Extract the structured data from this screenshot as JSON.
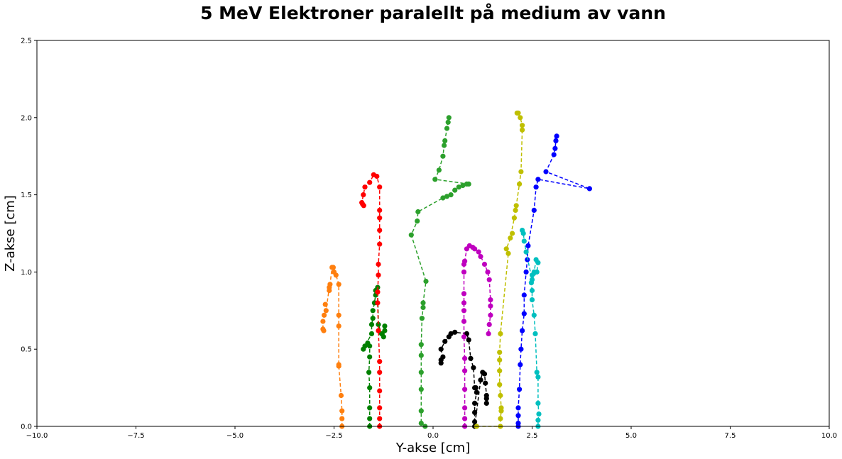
{
  "chart_data": {
    "type": "scatter",
    "title": "5 MeV Elektroner paralellt på medium av vann",
    "xlabel": "Y-akse [cm]",
    "ylabel": "Z-akse [cm]",
    "xlim": [
      -10,
      10
    ],
    "ylim": [
      0,
      2.5
    ],
    "xticks": [
      -10.0,
      -7.5,
      -5.0,
      -2.5,
      0.0,
      2.5,
      5.0,
      7.5,
      10.0
    ],
    "yticks": [
      0.0,
      0.5,
      1.0,
      1.5,
      2.0,
      2.5
    ],
    "xtick_labels": [
      "−10.0",
      "−7.5",
      "−5.0",
      "−2.5",
      "0.0",
      "2.5",
      "5.0",
      "7.5",
      "10.0"
    ],
    "ytick_labels": [
      "0.0",
      "0.5",
      "1.0",
      "1.5",
      "2.0",
      "2.5"
    ],
    "grid": false,
    "legend": "none",
    "line_style": "dashed with circle markers",
    "series": [
      {
        "color": "#ff7f0e",
        "points": [
          [
            -2.3,
            0.0
          ],
          [
            -2.3,
            0.05
          ],
          [
            -2.3,
            0.1
          ],
          [
            -2.32,
            0.2
          ],
          [
            -2.38,
            0.39
          ],
          [
            -2.38,
            0.4
          ],
          [
            -2.38,
            0.65
          ],
          [
            -2.38,
            0.72
          ],
          [
            -2.38,
            0.92
          ],
          [
            -2.45,
            0.98
          ],
          [
            -2.5,
            1.0
          ],
          [
            -2.52,
            1.03
          ],
          [
            -2.55,
            1.03
          ],
          [
            -2.6,
            0.92
          ],
          [
            -2.62,
            0.88
          ],
          [
            -2.62,
            0.9
          ],
          [
            -2.7,
            0.75
          ],
          [
            -2.72,
            0.79
          ],
          [
            -2.75,
            0.72
          ],
          [
            -2.78,
            0.68
          ],
          [
            -2.78,
            0.63
          ],
          [
            -2.76,
            0.62
          ]
        ]
      },
      {
        "color": "#008000",
        "points": [
          [
            -1.6,
            0.0
          ],
          [
            -1.6,
            0.05
          ],
          [
            -1.6,
            0.12
          ],
          [
            -1.6,
            0.25
          ],
          [
            -1.62,
            0.35
          ],
          [
            -1.6,
            0.45
          ],
          [
            -1.6,
            0.52
          ],
          [
            -1.65,
            0.54
          ],
          [
            -1.72,
            0.52
          ],
          [
            -1.76,
            0.5
          ],
          [
            -1.55,
            0.6
          ],
          [
            -1.55,
            0.66
          ],
          [
            -1.52,
            0.7
          ],
          [
            -1.52,
            0.75
          ],
          [
            -1.48,
            0.8
          ],
          [
            -1.45,
            0.85
          ],
          [
            -1.45,
            0.88
          ],
          [
            -1.42,
            0.87
          ],
          [
            -1.4,
            0.9
          ],
          [
            -1.38,
            0.66
          ],
          [
            -1.3,
            0.6
          ],
          [
            -1.25,
            0.58
          ],
          [
            -1.22,
            0.62
          ],
          [
            -1.22,
            0.65
          ]
        ]
      },
      {
        "color": "#ff0000",
        "points": [
          [
            -1.35,
            0.0
          ],
          [
            -1.35,
            0.05
          ],
          [
            -1.35,
            0.12
          ],
          [
            -1.35,
            0.23
          ],
          [
            -1.35,
            0.35
          ],
          [
            -1.35,
            0.42
          ],
          [
            -1.38,
            0.62
          ],
          [
            -1.4,
            0.8
          ],
          [
            -1.4,
            0.87
          ],
          [
            -1.38,
            0.98
          ],
          [
            -1.38,
            1.05
          ],
          [
            -1.35,
            1.18
          ],
          [
            -1.35,
            1.27
          ],
          [
            -1.35,
            1.35
          ],
          [
            -1.35,
            1.4
          ],
          [
            -1.35,
            1.55
          ],
          [
            -1.42,
            1.62
          ],
          [
            -1.5,
            1.63
          ],
          [
            -1.6,
            1.58
          ],
          [
            -1.72,
            1.55
          ],
          [
            -1.76,
            1.5
          ],
          [
            -1.8,
            1.45
          ],
          [
            -1.75,
            1.43
          ],
          [
            -1.78,
            1.44
          ]
        ]
      },
      {
        "color": "#2ca02c",
        "points": [
          [
            -0.2,
            0.0
          ],
          [
            -0.3,
            0.02
          ],
          [
            -0.3,
            0.1
          ],
          [
            -0.3,
            0.24
          ],
          [
            -0.3,
            0.35
          ],
          [
            -0.3,
            0.46
          ],
          [
            -0.3,
            0.53
          ],
          [
            -0.28,
            0.7
          ],
          [
            -0.25,
            0.77
          ],
          [
            -0.25,
            0.8
          ],
          [
            -0.18,
            0.94
          ],
          [
            -0.55,
            1.24
          ],
          [
            -0.4,
            1.33
          ],
          [
            -0.38,
            1.39
          ],
          [
            0.25,
            1.48
          ],
          [
            0.35,
            1.49
          ],
          [
            0.45,
            1.5
          ],
          [
            0.55,
            1.53
          ],
          [
            0.65,
            1.55
          ],
          [
            0.75,
            1.56
          ],
          [
            0.85,
            1.57
          ],
          [
            0.9,
            1.57
          ],
          [
            0.05,
            1.6
          ],
          [
            0.15,
            1.66
          ],
          [
            0.25,
            1.75
          ],
          [
            0.28,
            1.82
          ],
          [
            0.3,
            1.85
          ],
          [
            0.35,
            1.93
          ],
          [
            0.38,
            1.97
          ],
          [
            0.4,
            2.0
          ]
        ]
      },
      {
        "color": "#000000",
        "points": [
          [
            0.2,
            0.41
          ],
          [
            0.2,
            0.43
          ],
          [
            0.25,
            0.45
          ],
          [
            0.2,
            0.5
          ],
          [
            0.3,
            0.55
          ],
          [
            0.4,
            0.58
          ],
          [
            0.45,
            0.6
          ],
          [
            0.55,
            0.61
          ],
          [
            0.85,
            0.6
          ],
          [
            0.9,
            0.56
          ],
          [
            0.95,
            0.44
          ],
          [
            1.02,
            0.38
          ],
          [
            1.05,
            0.25
          ],
          [
            1.08,
            0.25
          ],
          [
            1.1,
            0.22
          ],
          [
            1.05,
            0.15
          ],
          [
            1.05,
            0.09
          ],
          [
            1.05,
            0.03
          ],
          [
            1.05,
            0.0
          ],
          [
            1.2,
            0.3
          ],
          [
            1.25,
            0.35
          ],
          [
            1.3,
            0.34
          ],
          [
            1.32,
            0.28
          ],
          [
            1.35,
            0.2
          ],
          [
            1.35,
            0.18
          ],
          [
            1.35,
            0.15
          ]
        ]
      },
      {
        "color": "#bf00bf",
        "points": [
          [
            0.8,
            0.0
          ],
          [
            0.8,
            0.05
          ],
          [
            0.8,
            0.12
          ],
          [
            0.8,
            0.24
          ],
          [
            0.8,
            0.36
          ],
          [
            0.8,
            0.44
          ],
          [
            0.78,
            0.58
          ],
          [
            0.78,
            0.68
          ],
          [
            0.78,
            0.75
          ],
          [
            0.78,
            0.8
          ],
          [
            0.78,
            0.86
          ],
          [
            0.78,
            1.0
          ],
          [
            0.78,
            1.05
          ],
          [
            0.8,
            1.07
          ],
          [
            0.85,
            1.15
          ],
          [
            0.92,
            1.17
          ],
          [
            1.0,
            1.16
          ],
          [
            1.05,
            1.15
          ],
          [
            1.15,
            1.13
          ],
          [
            1.2,
            1.1
          ],
          [
            1.3,
            1.05
          ],
          [
            1.38,
            1.0
          ],
          [
            1.42,
            0.95
          ],
          [
            1.45,
            0.82
          ],
          [
            1.45,
            0.78
          ],
          [
            1.45,
            0.72
          ],
          [
            1.42,
            0.66
          ],
          [
            1.4,
            0.6
          ]
        ]
      },
      {
        "color": "#bfbf00",
        "points": [
          [
            1.1,
            0.0
          ],
          [
            1.7,
            0.0
          ],
          [
            1.7,
            0.05
          ],
          [
            1.72,
            0.1
          ],
          [
            1.72,
            0.12
          ],
          [
            1.7,
            0.2
          ],
          [
            1.68,
            0.27
          ],
          [
            1.68,
            0.36
          ],
          [
            1.68,
            0.43
          ],
          [
            1.68,
            0.48
          ],
          [
            1.7,
            0.6
          ],
          [
            1.9,
            1.12
          ],
          [
            1.85,
            1.15
          ],
          [
            2.0,
            1.25
          ],
          [
            1.95,
            1.22
          ],
          [
            2.05,
            1.35
          ],
          [
            2.08,
            1.4
          ],
          [
            2.1,
            1.43
          ],
          [
            2.18,
            1.57
          ],
          [
            2.22,
            1.65
          ],
          [
            2.25,
            1.92
          ],
          [
            2.25,
            1.95
          ],
          [
            2.2,
            2.0
          ],
          [
            2.15,
            2.03
          ],
          [
            2.12,
            2.03
          ]
        ]
      },
      {
        "color": "#0000ff",
        "points": [
          [
            2.15,
            0.0
          ],
          [
            2.15,
            0.02
          ],
          [
            2.15,
            0.07
          ],
          [
            2.15,
            0.12
          ],
          [
            2.18,
            0.24
          ],
          [
            2.2,
            0.4
          ],
          [
            2.22,
            0.5
          ],
          [
            2.25,
            0.62
          ],
          [
            2.3,
            0.73
          ],
          [
            2.3,
            0.85
          ],
          [
            2.35,
            1.0
          ],
          [
            2.38,
            1.08
          ],
          [
            2.4,
            1.17
          ],
          [
            2.55,
            1.4
          ],
          [
            2.6,
            1.55
          ],
          [
            2.65,
            1.6
          ],
          [
            3.95,
            1.54
          ],
          [
            2.85,
            1.65
          ],
          [
            3.05,
            1.76
          ],
          [
            3.08,
            1.8
          ],
          [
            3.1,
            1.85
          ],
          [
            3.12,
            1.88
          ]
        ]
      },
      {
        "color": "#00bfbf",
        "points": [
          [
            2.65,
            0.0
          ],
          [
            2.65,
            0.04
          ],
          [
            2.67,
            0.08
          ],
          [
            2.65,
            0.15
          ],
          [
            2.65,
            0.32
          ],
          [
            2.62,
            0.35
          ],
          [
            2.58,
            0.6
          ],
          [
            2.55,
            0.72
          ],
          [
            2.5,
            0.82
          ],
          [
            2.5,
            0.88
          ],
          [
            2.48,
            0.93
          ],
          [
            2.5,
            0.98
          ],
          [
            2.55,
            1.0
          ],
          [
            2.6,
            1.08
          ],
          [
            2.65,
            1.06
          ],
          [
            2.62,
            1.0
          ],
          [
            2.5,
            0.95
          ],
          [
            2.35,
            1.13
          ],
          [
            2.3,
            1.2
          ],
          [
            2.28,
            1.25
          ],
          [
            2.25,
            1.27
          ]
        ]
      }
    ]
  }
}
